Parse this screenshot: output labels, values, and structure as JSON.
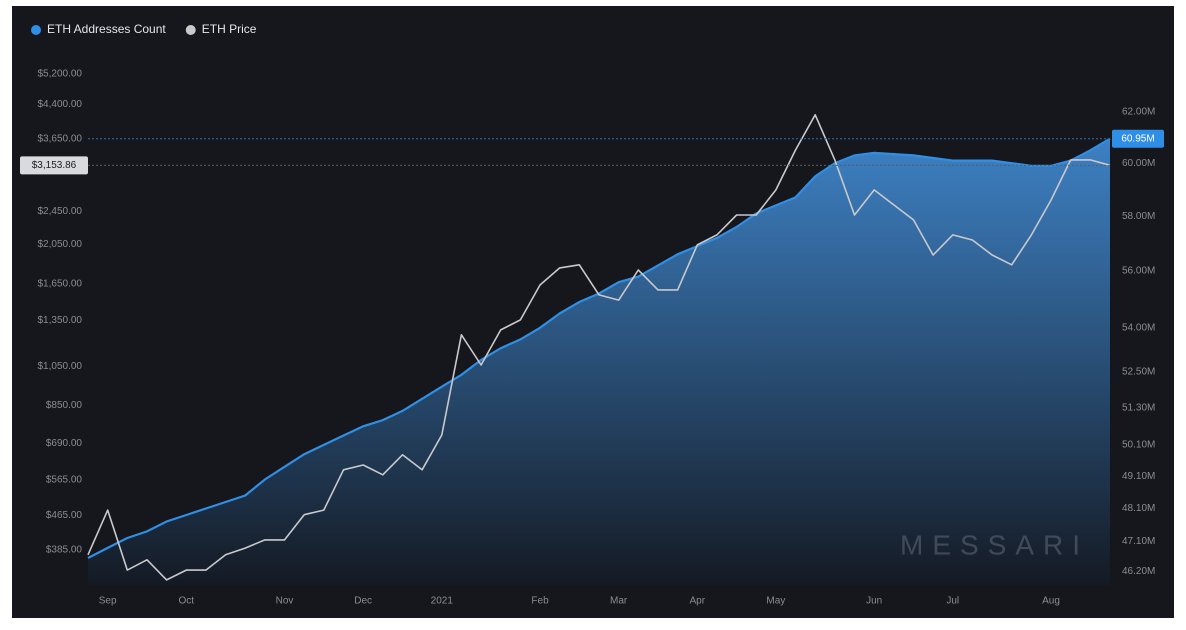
{
  "chart_data": {
    "type": "line",
    "legend_position": "top-left",
    "watermark": "MESSARI",
    "log_scale": true,
    "grid": false,
    "categories": [
      null,
      "Sep",
      null,
      null,
      null,
      "Oct",
      null,
      null,
      null,
      null,
      "Nov",
      null,
      null,
      null,
      "Dec",
      null,
      null,
      null,
      "2021",
      null,
      null,
      null,
      null,
      "Feb",
      null,
      null,
      null,
      "Mar",
      null,
      null,
      null,
      "Apr",
      null,
      null,
      null,
      "May",
      null,
      null,
      null,
      null,
      "Jun",
      null,
      null,
      null,
      "Jul",
      null,
      null,
      null,
      null,
      "Aug",
      null,
      null,
      null
    ],
    "series": [
      {
        "name": "ETH Addresses Count",
        "color": "#2f8fe6",
        "style": "area",
        "axis": "y2",
        "values": [
          46.6,
          46.9,
          47.2,
          47.4,
          47.7,
          47.9,
          48.1,
          48.3,
          48.5,
          49.0,
          49.4,
          49.8,
          50.1,
          50.4,
          50.7,
          50.9,
          51.2,
          51.6,
          52.0,
          52.4,
          52.9,
          53.3,
          53.6,
          54.0,
          54.5,
          54.9,
          55.2,
          55.6,
          55.8,
          56.2,
          56.6,
          56.9,
          57.2,
          57.6,
          58.1,
          58.4,
          58.7,
          59.5,
          60.0,
          60.3,
          60.4,
          60.35,
          60.3,
          60.2,
          60.1,
          60.1,
          60.1,
          60.0,
          59.9,
          59.9,
          60.1,
          60.5,
          60.95
        ]
      },
      {
        "name": "ETH Price",
        "color": "#c9c9cc",
        "style": "line",
        "axis": "y",
        "values": [
          375,
          479,
          345,
          365,
          327,
          345,
          345,
          375,
          389,
          407,
          407,
          467,
          479,
          597,
          613,
          581,
          648,
          597,
          722,
          1249,
          1059,
          1283,
          1355,
          1640,
          1800,
          1831,
          1553,
          1510,
          1780,
          1596,
          1596,
          2041,
          2156,
          2404,
          2404,
          2757,
          3429,
          4158,
          3249,
          2404,
          2757,
          2540,
          2340,
          1932,
          2156,
          2097,
          1932,
          1831,
          2156,
          2608,
          3249,
          3249,
          3153.86
        ]
      }
    ],
    "ylim": [
      318,
      5610
    ],
    "yticks": [
      {
        "value": 5200,
        "label": "$5,200.00"
      },
      {
        "value": 4400,
        "label": "$4,400.00"
      },
      {
        "value": 3650,
        "label": "$3,650.00"
      },
      {
        "value": 2450,
        "label": "$2,450.00"
      },
      {
        "value": 2050,
        "label": "$2,050.00"
      },
      {
        "value": 1650,
        "label": "$1,650.00"
      },
      {
        "value": 1350,
        "label": "$1,350.00"
      },
      {
        "value": 1050,
        "label": "$1,050.00"
      },
      {
        "value": 850,
        "label": "$850.00"
      },
      {
        "value": 690,
        "label": "$690.00"
      },
      {
        "value": 565,
        "label": "$565.00"
      },
      {
        "value": 465,
        "label": "$465.00"
      },
      {
        "value": 385,
        "label": "$385.00"
      }
    ],
    "y2lim": [
      45.8,
      64.1
    ],
    "y2ticks": [
      {
        "value": 62,
        "label": "62.00M"
      },
      {
        "value": 60,
        "label": "60.00M"
      },
      {
        "value": 58,
        "label": "58.00M"
      },
      {
        "value": 56,
        "label": "56.00M"
      },
      {
        "value": 54,
        "label": "54.00M"
      },
      {
        "value": 52.5,
        "label": "52.50M"
      },
      {
        "value": 51.3,
        "label": "51.30M"
      },
      {
        "value": 50.1,
        "label": "50.10M"
      },
      {
        "value": 49.1,
        "label": "49.10M"
      },
      {
        "value": 48.1,
        "label": "48.10M"
      },
      {
        "value": 47.1,
        "label": "47.10M"
      },
      {
        "value": 46.2,
        "label": "46.20M"
      }
    ],
    "markers": [
      {
        "value": 3153.86,
        "label": "$3,153.86",
        "axis": "y",
        "color": "#d9dadd"
      },
      {
        "value": 60.95,
        "label": "60.95M",
        "axis": "y2",
        "color": "#2f8fe6"
      }
    ]
  }
}
